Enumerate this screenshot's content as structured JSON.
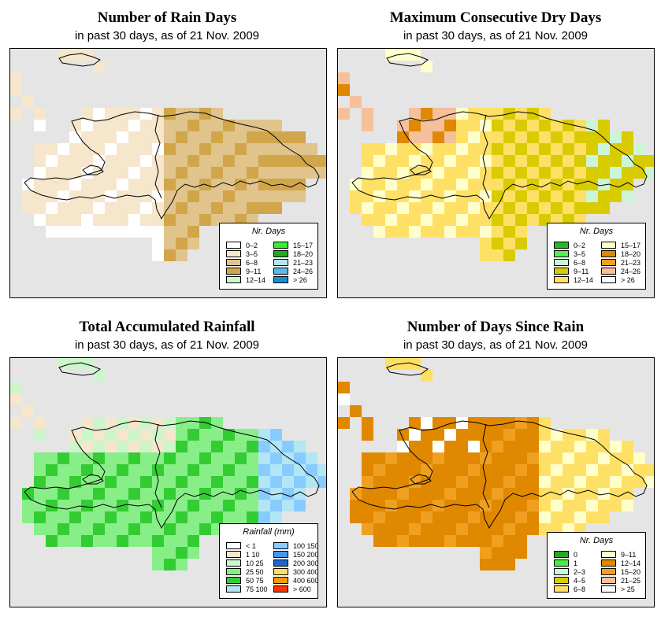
{
  "panels": [
    {
      "id": "rain-days",
      "title": "Number of Rain Days",
      "subtitle": "in past 30 days, as of  21 Nov. 2009",
      "legend": {
        "title": "Nr. Days",
        "items": [
          {
            "label": "0–2",
            "color": "#ffffff"
          },
          {
            "label": "3–5",
            "color": "#f5e6cc"
          },
          {
            "label": "6–8",
            "color": "#e0c48c"
          },
          {
            "label": "9–11",
            "color": "#d1a64a"
          },
          {
            "label": "12–14",
            "color": "#ccf5cc"
          },
          {
            "label": "15–17",
            "color": "#33ee33"
          },
          {
            "label": "18–20",
            "color": "#22aa22"
          },
          {
            "label": "21–23",
            "color": "#b3e6f5"
          },
          {
            "label": "24–26",
            "color": "#5cb8ee"
          },
          {
            "label": "> 26",
            "color": "#1a8cd8"
          }
        ]
      }
    },
    {
      "id": "dry-days",
      "title": "Maximum Consecutive Dry Days",
      "subtitle": "in past 30 days, as of  21 Nov. 2009",
      "legend": {
        "title": "Nr. Days",
        "items": [
          {
            "label": "0–2",
            "color": "#22bb22"
          },
          {
            "label": "3–5",
            "color": "#55ee55"
          },
          {
            "label": "6–8",
            "color": "#ccf5d6"
          },
          {
            "label": "9–11",
            "color": "#d8cc00"
          },
          {
            "label": "12–14",
            "color": "#ffe066"
          },
          {
            "label": "15–17",
            "color": "#ffffcc"
          },
          {
            "label": "18–20",
            "color": "#e08800"
          },
          {
            "label": "21–23",
            "color": "#f0a020"
          },
          {
            "label": "24–26",
            "color": "#f5c09a"
          },
          {
            "label": "> 26",
            "color": "#ffffff"
          }
        ]
      }
    },
    {
      "id": "rainfall",
      "title": "Total Accumulated Rainfall",
      "subtitle": "in past 30 days, as of  21 Nov. 2009",
      "legend": {
        "title": "Rainfall (mm)",
        "items": [
          {
            "label": "< 1",
            "color": "#ffffff"
          },
          {
            "label": "1    10",
            "color": "#f5e6cc"
          },
          {
            "label": "10    25",
            "color": "#ccf5cc"
          },
          {
            "label": "25    50",
            "color": "#88ee88"
          },
          {
            "label": "50    75",
            "color": "#33cc33"
          },
          {
            "label": "75   100",
            "color": "#b3e6f5"
          },
          {
            "label": "100   150",
            "color": "#88ccff"
          },
          {
            "label": "150   200",
            "color": "#4499ee"
          },
          {
            "label": "200   300",
            "color": "#1a66cc"
          },
          {
            "label": "300   400",
            "color": "#ffe066"
          },
          {
            "label": "400   600",
            "color": "#ff9900"
          },
          {
            "label": "> 600",
            "color": "#ff3300"
          }
        ]
      }
    },
    {
      "id": "since-rain",
      "title": "Number of Days Since Rain",
      "subtitle": "in past 30 days, as of  21 Nov. 2009",
      "legend": {
        "title": "Nr. Days",
        "items": [
          {
            "label": "0",
            "color": "#22aa22"
          },
          {
            "label": "1",
            "color": "#44ee44"
          },
          {
            "label": "2–3",
            "color": "#ccf5d6"
          },
          {
            "label": "4–5",
            "color": "#d8cc00"
          },
          {
            "label": "6–8",
            "color": "#ffe066"
          },
          {
            "label": "9–11",
            "color": "#ffffcc"
          },
          {
            "label": "12–14",
            "color": "#e08800"
          },
          {
            "label": "15–20",
            "color": "#f0a020"
          },
          {
            "label": "21–25",
            "color": "#f5c09a"
          },
          {
            "label": "> 25",
            "color": "#ffffff"
          }
        ]
      }
    }
  ]
}
